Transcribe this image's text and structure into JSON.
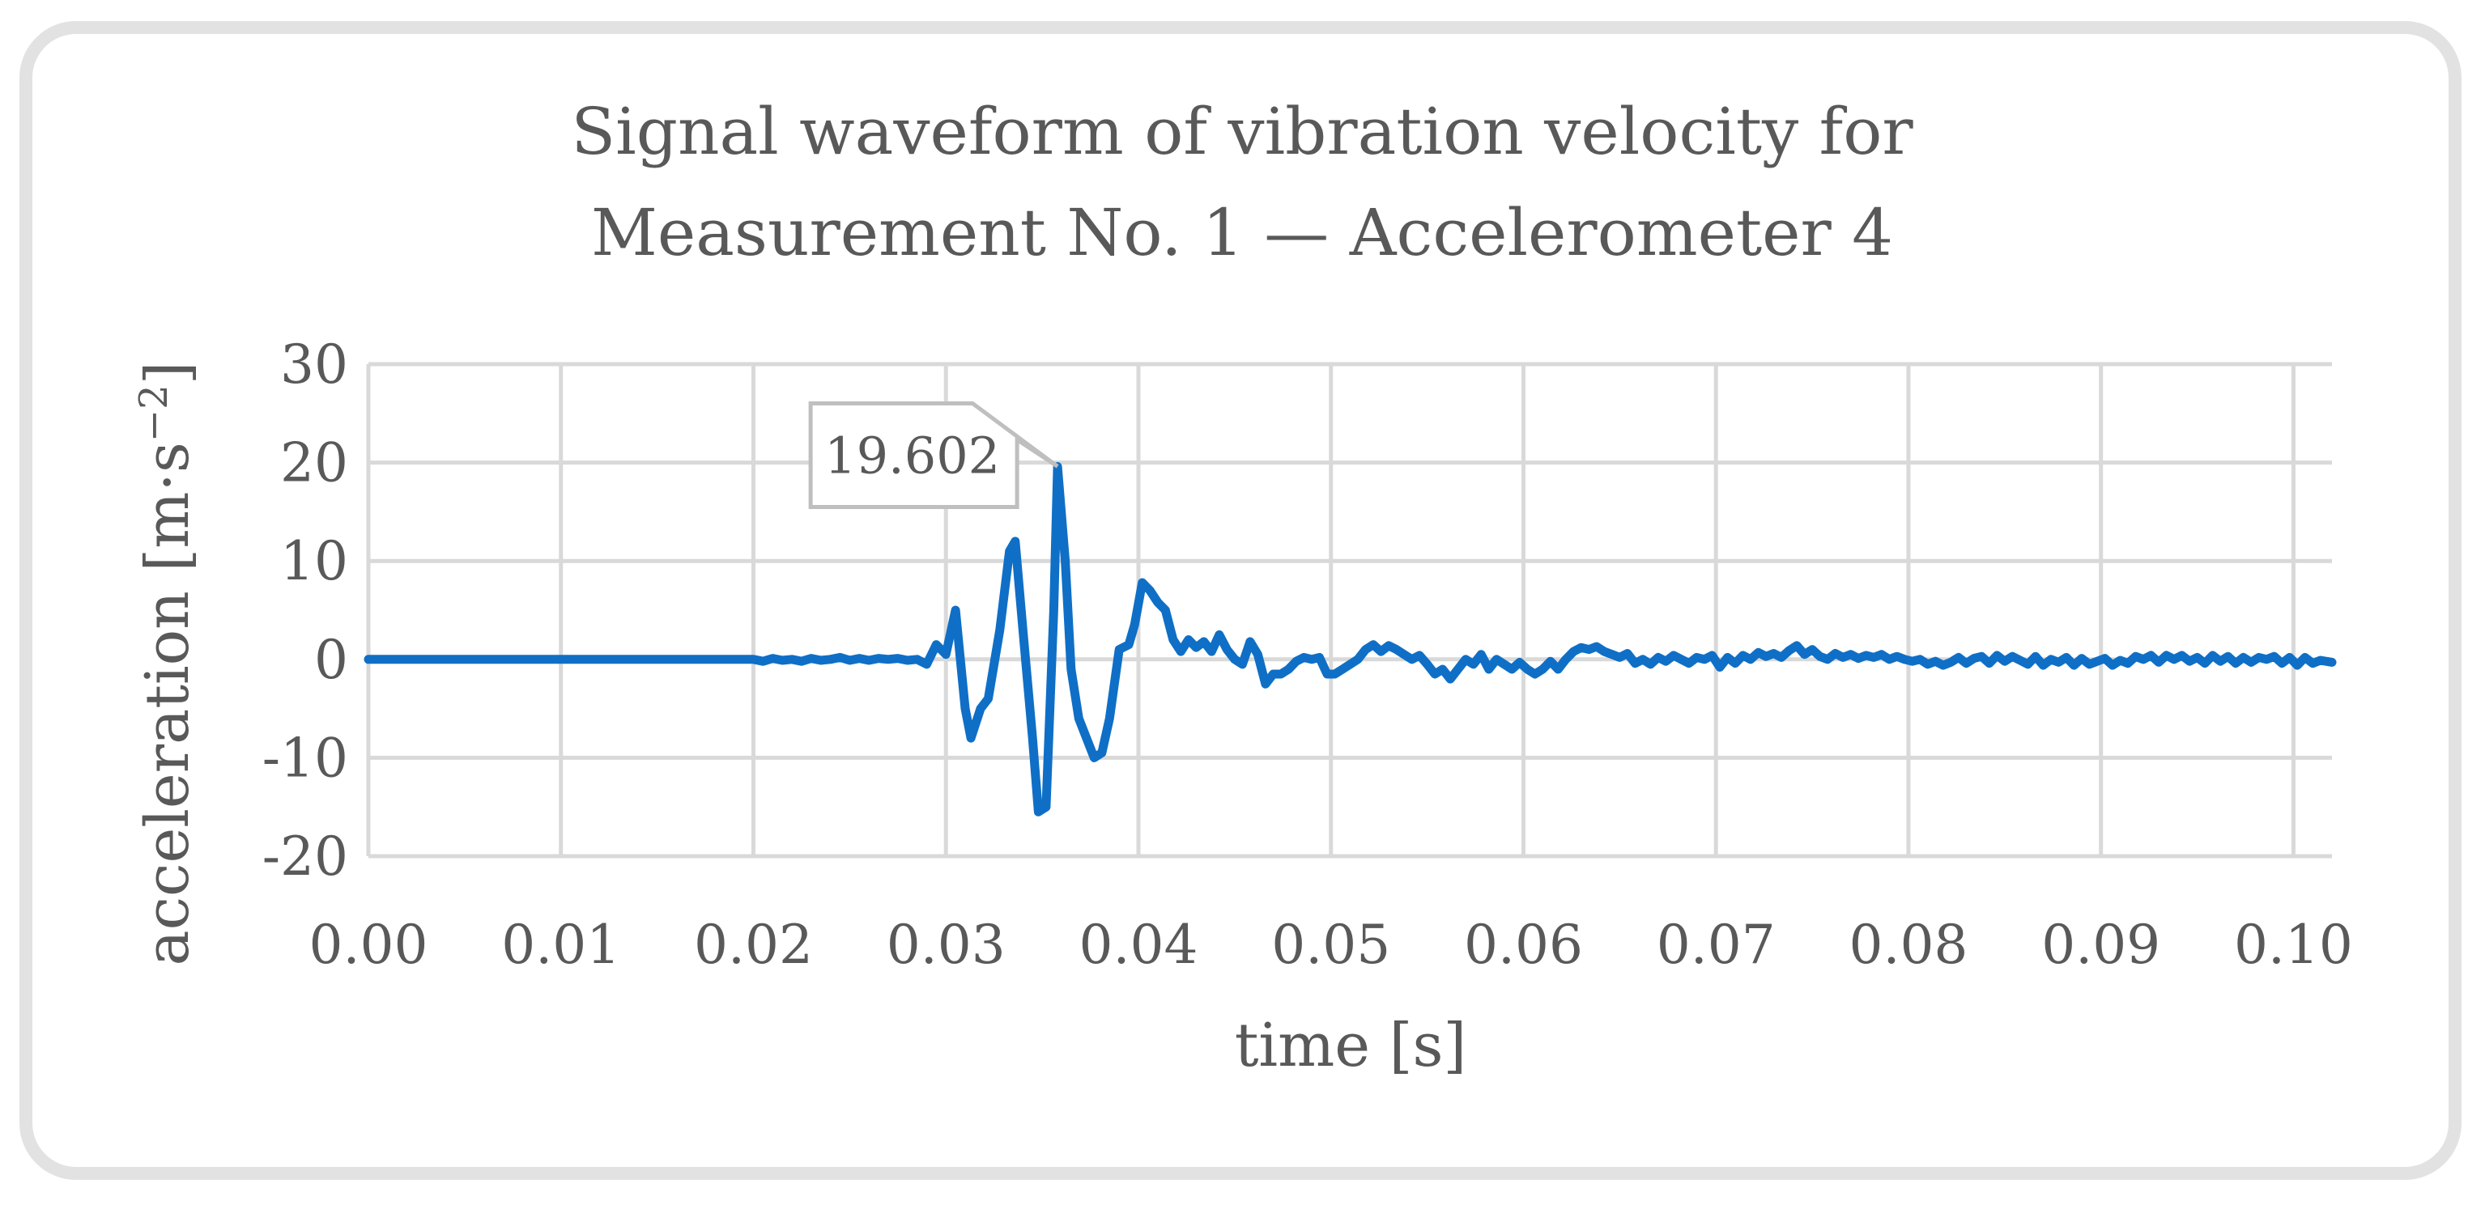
{
  "chart_data": {
    "type": "line",
    "title_lines": [
      "Signal waveform of vibration velocity for",
      "Measurement No. 1 — Accelerometer 4"
    ],
    "xlabel": "time [s]",
    "ylabel_base": "acceleration [m·s",
    "ylabel_exp": "−2",
    "ylabel_close": "]",
    "xlim": [
      0.0,
      0.102
    ],
    "ylim": [
      -20,
      30
    ],
    "xticks": [
      0.0,
      0.01,
      0.02,
      0.03,
      0.04,
      0.05,
      0.06,
      0.07,
      0.08,
      0.09,
      0.1
    ],
    "xtick_labels": [
      "0.00",
      "0.01",
      "0.02",
      "0.03",
      "0.04",
      "0.05",
      "0.06",
      "0.07",
      "0.08",
      "0.09",
      "0.10"
    ],
    "yticks": [
      -20,
      -10,
      0,
      10,
      20,
      30
    ],
    "ytick_labels": [
      "-20",
      "-10",
      "0",
      "10",
      "20",
      "30"
    ],
    "grid": true,
    "line_color": "#0f6fc6",
    "annotation": {
      "label": "19.602",
      "x": 0.0358,
      "y": 19.602
    },
    "series": [
      {
        "name": "Accelerometer 4",
        "points": [
          [
            0.0,
            0.0
          ],
          [
            0.002,
            0.0
          ],
          [
            0.004,
            0.0
          ],
          [
            0.006,
            0.0
          ],
          [
            0.008,
            0.0
          ],
          [
            0.01,
            0.0
          ],
          [
            0.012,
            0.0
          ],
          [
            0.014,
            0.0
          ],
          [
            0.016,
            0.0
          ],
          [
            0.018,
            0.0
          ],
          [
            0.02,
            0.0
          ],
          [
            0.0205,
            -0.2
          ],
          [
            0.021,
            0.1
          ],
          [
            0.0215,
            -0.1
          ],
          [
            0.022,
            0.0
          ],
          [
            0.0225,
            -0.2
          ],
          [
            0.023,
            0.1
          ],
          [
            0.0235,
            -0.1
          ],
          [
            0.024,
            0.0
          ],
          [
            0.0245,
            0.2
          ],
          [
            0.025,
            -0.1
          ],
          [
            0.0255,
            0.1
          ],
          [
            0.026,
            -0.1
          ],
          [
            0.0265,
            0.1
          ],
          [
            0.027,
            0.0
          ],
          [
            0.0275,
            0.1
          ],
          [
            0.028,
            -0.1
          ],
          [
            0.0285,
            0.0
          ],
          [
            0.029,
            -0.5
          ],
          [
            0.0295,
            1.5
          ],
          [
            0.03,
            0.5
          ],
          [
            0.0305,
            5.0
          ],
          [
            0.031,
            -5.0
          ],
          [
            0.0313,
            -8.0
          ],
          [
            0.0318,
            -5.0
          ],
          [
            0.0322,
            -4.0
          ],
          [
            0.0328,
            3.0
          ],
          [
            0.0333,
            11.0
          ],
          [
            0.0336,
            12.0
          ],
          [
            0.034,
            3.0
          ],
          [
            0.0345,
            -8.0
          ],
          [
            0.0348,
            -15.5
          ],
          [
            0.0352,
            -15.0
          ],
          [
            0.0356,
            5.0
          ],
          [
            0.0358,
            19.6
          ],
          [
            0.0362,
            10.0
          ],
          [
            0.0365,
            -1.0
          ],
          [
            0.0369,
            -6.0
          ],
          [
            0.0373,
            -8.0
          ],
          [
            0.0377,
            -10.0
          ],
          [
            0.0381,
            -9.5
          ],
          [
            0.0385,
            -6.0
          ],
          [
            0.039,
            1.0
          ],
          [
            0.0395,
            1.5
          ],
          [
            0.0398,
            3.5
          ],
          [
            0.0402,
            7.8
          ],
          [
            0.0406,
            7.0
          ],
          [
            0.041,
            5.8
          ],
          [
            0.0414,
            5.0
          ],
          [
            0.0418,
            2.0
          ],
          [
            0.0422,
            0.8
          ],
          [
            0.0426,
            2.0
          ],
          [
            0.043,
            1.2
          ],
          [
            0.0434,
            1.8
          ],
          [
            0.0438,
            0.8
          ],
          [
            0.0442,
            2.5
          ],
          [
            0.0446,
            1.0
          ],
          [
            0.045,
            0.0
          ],
          [
            0.0454,
            -0.5
          ],
          [
            0.0458,
            1.8
          ],
          [
            0.0462,
            0.5
          ],
          [
            0.0466,
            -2.5
          ],
          [
            0.047,
            -1.5
          ],
          [
            0.0474,
            -1.5
          ],
          [
            0.0478,
            -1.0
          ],
          [
            0.0482,
            -0.2
          ],
          [
            0.0486,
            0.2
          ],
          [
            0.049,
            0.0
          ],
          [
            0.0494,
            0.2
          ],
          [
            0.0498,
            -1.5
          ],
          [
            0.0502,
            -1.5
          ],
          [
            0.0506,
            -1.0
          ],
          [
            0.051,
            -0.5
          ],
          [
            0.0514,
            0.0
          ],
          [
            0.0518,
            1.0
          ],
          [
            0.0522,
            1.5
          ],
          [
            0.0526,
            0.8
          ],
          [
            0.053,
            1.4
          ],
          [
            0.0534,
            1.0
          ],
          [
            0.0538,
            0.5
          ],
          [
            0.0542,
            0.0
          ],
          [
            0.0546,
            0.4
          ],
          [
            0.055,
            -0.5
          ],
          [
            0.0554,
            -1.5
          ],
          [
            0.0558,
            -1.0
          ],
          [
            0.0562,
            -2.0
          ],
          [
            0.0566,
            -1.0
          ],
          [
            0.057,
            0.0
          ],
          [
            0.0574,
            -0.5
          ],
          [
            0.0578,
            0.5
          ],
          [
            0.0582,
            -1.0
          ],
          [
            0.0586,
            0.0
          ],
          [
            0.059,
            -0.5
          ],
          [
            0.0594,
            -1.0
          ],
          [
            0.0598,
            -0.3
          ],
          [
            0.0602,
            -1.0
          ],
          [
            0.0606,
            -1.5
          ],
          [
            0.061,
            -1.0
          ],
          [
            0.0614,
            -0.2
          ],
          [
            0.0618,
            -1.0
          ],
          [
            0.0622,
            0.0
          ],
          [
            0.0626,
            0.8
          ],
          [
            0.063,
            1.2
          ],
          [
            0.0634,
            1.0
          ],
          [
            0.0638,
            1.3
          ],
          [
            0.0642,
            0.8
          ],
          [
            0.0646,
            0.5
          ],
          [
            0.065,
            0.2
          ],
          [
            0.0654,
            0.6
          ],
          [
            0.0658,
            -0.4
          ],
          [
            0.0662,
            0.0
          ],
          [
            0.0666,
            -0.5
          ],
          [
            0.067,
            0.2
          ],
          [
            0.0674,
            -0.2
          ],
          [
            0.0678,
            0.4
          ],
          [
            0.0682,
            0.0
          ],
          [
            0.0686,
            -0.4
          ],
          [
            0.069,
            0.2
          ],
          [
            0.0694,
            0.0
          ],
          [
            0.0698,
            0.4
          ],
          [
            0.0702,
            -0.8
          ],
          [
            0.0706,
            0.2
          ],
          [
            0.071,
            -0.4
          ],
          [
            0.0714,
            0.4
          ],
          [
            0.0718,
            0.0
          ],
          [
            0.0722,
            0.7
          ],
          [
            0.0726,
            0.3
          ],
          [
            0.073,
            0.6
          ],
          [
            0.0734,
            0.2
          ],
          [
            0.0738,
            0.9
          ],
          [
            0.0742,
            1.4
          ],
          [
            0.0746,
            0.5
          ],
          [
            0.075,
            1.0
          ],
          [
            0.0754,
            0.3
          ],
          [
            0.0758,
            0.0
          ],
          [
            0.0762,
            0.6
          ],
          [
            0.0766,
            0.2
          ],
          [
            0.077,
            0.5
          ],
          [
            0.0774,
            0.1
          ],
          [
            0.0778,
            0.4
          ],
          [
            0.0782,
            0.2
          ],
          [
            0.0786,
            0.5
          ],
          [
            0.079,
            0.0
          ],
          [
            0.0794,
            0.3
          ],
          [
            0.0798,
            0.0
          ],
          [
            0.0802,
            -0.2
          ],
          [
            0.0806,
            0.0
          ],
          [
            0.081,
            -0.5
          ],
          [
            0.0814,
            -0.2
          ],
          [
            0.0818,
            -0.6
          ],
          [
            0.0822,
            -0.3
          ],
          [
            0.0826,
            0.2
          ],
          [
            0.083,
            -0.4
          ],
          [
            0.0834,
            0.1
          ],
          [
            0.0838,
            0.3
          ],
          [
            0.0842,
            -0.4
          ],
          [
            0.0846,
            0.4
          ],
          [
            0.085,
            -0.2
          ],
          [
            0.0854,
            0.3
          ],
          [
            0.0858,
            -0.1
          ],
          [
            0.0862,
            -0.5
          ],
          [
            0.0866,
            0.3
          ],
          [
            0.087,
            -0.6
          ],
          [
            0.0874,
            0.0
          ],
          [
            0.0878,
            -0.3
          ],
          [
            0.0882,
            0.2
          ],
          [
            0.0886,
            -0.6
          ],
          [
            0.089,
            0.1
          ],
          [
            0.0894,
            -0.5
          ],
          [
            0.0898,
            -0.2
          ],
          [
            0.0902,
            0.1
          ],
          [
            0.0906,
            -0.6
          ],
          [
            0.091,
            -0.1
          ],
          [
            0.0914,
            -0.4
          ],
          [
            0.0918,
            0.3
          ],
          [
            0.0922,
            0.0
          ],
          [
            0.0926,
            0.4
          ],
          [
            0.093,
            -0.3
          ],
          [
            0.0934,
            0.4
          ],
          [
            0.0938,
            0.0
          ],
          [
            0.0942,
            0.4
          ],
          [
            0.0946,
            -0.2
          ],
          [
            0.095,
            0.2
          ],
          [
            0.0954,
            -0.4
          ],
          [
            0.0958,
            0.4
          ],
          [
            0.0962,
            -0.2
          ],
          [
            0.0966,
            0.3
          ],
          [
            0.097,
            -0.4
          ],
          [
            0.0974,
            0.2
          ],
          [
            0.0978,
            -0.3
          ],
          [
            0.0982,
            0.2
          ],
          [
            0.0986,
            0.0
          ],
          [
            0.099,
            0.3
          ],
          [
            0.0994,
            -0.4
          ],
          [
            0.0998,
            0.2
          ],
          [
            0.1002,
            -0.6
          ],
          [
            0.1006,
            0.2
          ],
          [
            0.101,
            -0.4
          ],
          [
            0.1014,
            -0.1
          ],
          [
            0.102,
            -0.3
          ]
        ]
      }
    ]
  }
}
